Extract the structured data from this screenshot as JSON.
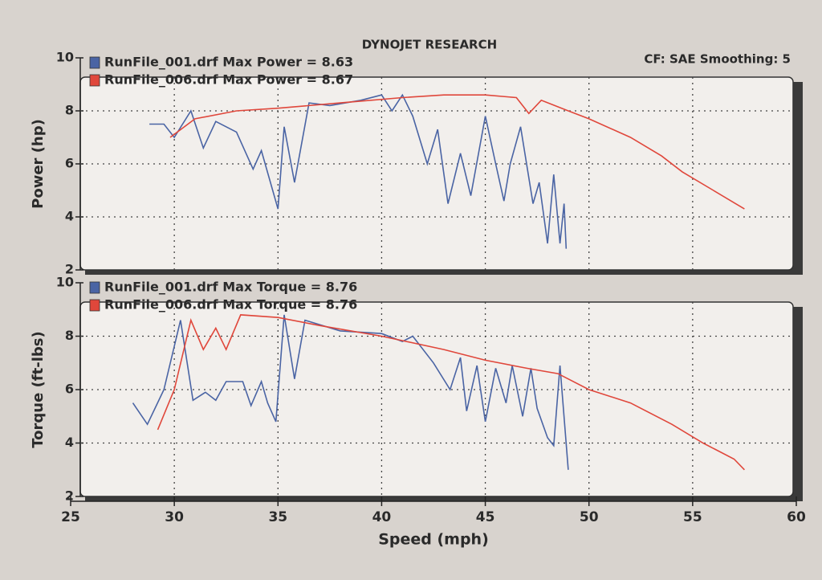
{
  "header": {
    "title": "DYNOJET RESEARCH",
    "settings": "CF: SAE  Smoothing: 5"
  },
  "x_axis": {
    "label": "Speed (mph)",
    "lim": [
      25,
      60
    ],
    "ticks": [
      25,
      30,
      35,
      40,
      45,
      50,
      55,
      60
    ]
  },
  "chart_data": [
    {
      "type": "line",
      "ylabel": "Power (hp)",
      "ylim": [
        2,
        10
      ],
      "yticks": [
        2,
        4,
        6,
        8,
        10
      ],
      "grid": true,
      "series": [
        {
          "name": "RunFile_001.drf Max Power = 8.63",
          "color": "#4a64a4",
          "x": [
            28.8,
            29.5,
            30,
            30.8,
            31.4,
            32,
            33,
            33.8,
            34.2,
            35,
            35.3,
            35.8,
            36.5,
            37.5,
            39,
            40,
            40.5,
            41,
            41.5,
            42.2,
            42.7,
            43.2,
            43.8,
            44.3,
            45,
            45.5,
            45.9,
            46.2,
            46.7,
            47.3,
            47.6,
            48,
            48.3,
            48.6,
            48.8,
            48.9
          ],
          "values": [
            7.5,
            7.5,
            7.0,
            8.0,
            6.6,
            7.6,
            7.2,
            5.8,
            6.5,
            4.3,
            7.4,
            5.3,
            8.3,
            8.2,
            8.4,
            8.6,
            8.0,
            8.6,
            7.8,
            6.0,
            7.3,
            4.5,
            6.4,
            4.8,
            7.8,
            6.0,
            4.6,
            6.0,
            7.4,
            4.5,
            5.3,
            3.0,
            5.6,
            3.0,
            4.5,
            2.8
          ]
        },
        {
          "name": "RunFile_006.drf Max Power = 8.67",
          "color": "#e0473b",
          "x": [
            29.8,
            31,
            33,
            35,
            38,
            41,
            43,
            45,
            46.5,
            47.1,
            47.7,
            49,
            50,
            52,
            53.5,
            54.5,
            56,
            57.5
          ],
          "values": [
            7.0,
            7.7,
            8.0,
            8.1,
            8.3,
            8.5,
            8.6,
            8.6,
            8.5,
            7.9,
            8.4,
            8.0,
            7.7,
            7.0,
            6.3,
            5.7,
            5.0,
            4.3
          ]
        }
      ]
    },
    {
      "type": "line",
      "ylabel": "Torque (ft-lbs)",
      "ylim": [
        2,
        10
      ],
      "yticks": [
        2,
        4,
        6,
        8,
        10
      ],
      "grid": true,
      "series": [
        {
          "name": "RunFile_001.drf Max Torque = 8.76",
          "color": "#4a64a4",
          "x": [
            28,
            28.7,
            29.5,
            30.3,
            30.9,
            31.5,
            32,
            32.5,
            33.3,
            33.7,
            34.2,
            34.5,
            34.9,
            35.3,
            35.8,
            36.3,
            38,
            40,
            41,
            41.5,
            42.5,
            43.3,
            43.8,
            44.1,
            44.6,
            45,
            45.5,
            46,
            46.3,
            46.8,
            47.2,
            47.5,
            48,
            48.3,
            48.6,
            49
          ],
          "values": [
            5.5,
            4.7,
            6.0,
            8.6,
            5.6,
            5.9,
            5.6,
            6.3,
            6.3,
            5.4,
            6.3,
            5.5,
            4.8,
            8.8,
            6.4,
            8.6,
            8.2,
            8.1,
            7.8,
            8.0,
            7.0,
            6.0,
            7.2,
            5.2,
            6.9,
            4.8,
            6.8,
            5.5,
            6.9,
            5.0,
            6.8,
            5.3,
            4.2,
            3.9,
            6.9,
            3.0
          ]
        },
        {
          "name": "RunFile_006.drf Max Torque = 8.76",
          "color": "#e0473b",
          "x": [
            29.2,
            30,
            30.8,
            31.4,
            32,
            32.5,
            33.2,
            35,
            37,
            40,
            43,
            45,
            47,
            48.5,
            50,
            52,
            54,
            55.5,
            57,
            57.5
          ],
          "values": [
            4.5,
            6.0,
            8.6,
            7.5,
            8.3,
            7.5,
            8.8,
            8.7,
            8.4,
            8.0,
            7.5,
            7.1,
            6.8,
            6.6,
            6.0,
            5.5,
            4.7,
            4.0,
            3.4,
            3.0
          ]
        }
      ]
    }
  ]
}
